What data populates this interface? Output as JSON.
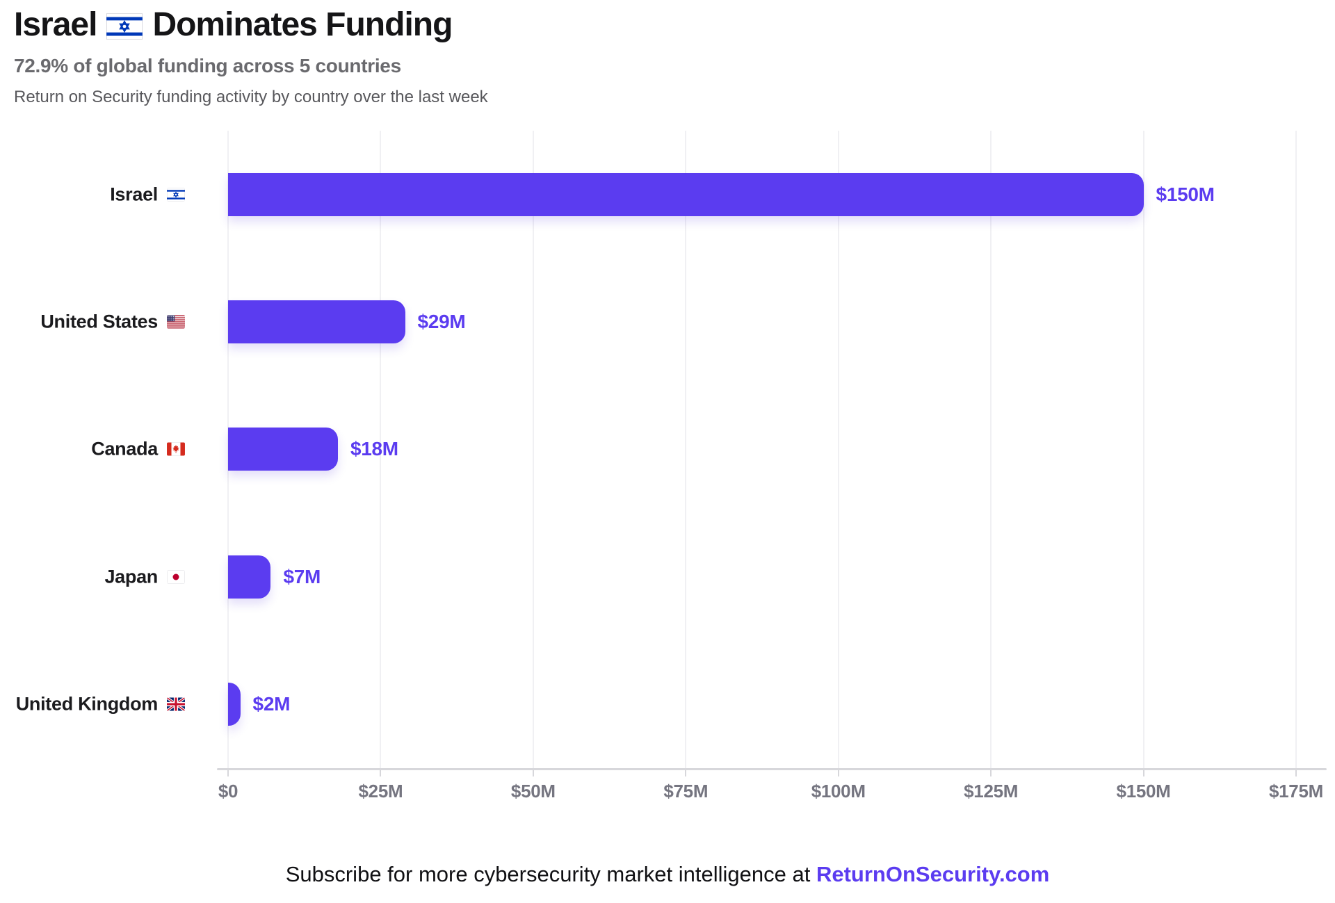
{
  "header": {
    "title_pre": "Israel",
    "title_flag": "israel-flag",
    "title_post": "Dominates Funding",
    "subtitle": "72.9% of global funding across 5 countries",
    "description": "Return on Security funding activity by country over the last week"
  },
  "chart_data": {
    "type": "bar",
    "orientation": "horizontal",
    "title": "Israel Dominates Funding",
    "subtitle": "72.9% of global funding across 5 countries",
    "categories": [
      "Israel",
      "United States",
      "Canada",
      "Japan",
      "United Kingdom"
    ],
    "country_slugs": [
      "israel",
      "united-states",
      "canada",
      "japan",
      "united-kingdom"
    ],
    "values": [
      150,
      29,
      18,
      7,
      2
    ],
    "value_labels": [
      "$150M",
      "$29M",
      "$18M",
      "$7M",
      "$2M"
    ],
    "value_unit": "USD millions",
    "xlim": [
      0,
      179
    ],
    "x_ticks": [
      {
        "value": 0,
        "label": "$0"
      },
      {
        "value": 25,
        "label": "$25M"
      },
      {
        "value": 50,
        "label": "$50M"
      },
      {
        "value": 75,
        "label": "$75M"
      },
      {
        "value": 100,
        "label": "$100M"
      },
      {
        "value": 125,
        "label": "$125M"
      },
      {
        "value": 150,
        "label": "$150M"
      },
      {
        "value": 175,
        "label": "$175M"
      }
    ],
    "grid": true,
    "legend": false,
    "bar_color": "#5b3cf0",
    "value_label_color": "#5b3cf0",
    "flag_colors": {
      "israel_blue": "#0038b8",
      "us_red": "#b22234",
      "us_blue": "#3c3b6e",
      "canada_red": "#d52b1e",
      "japan_red": "#bc002d",
      "uk_blue": "#012169",
      "uk_red": "#c8102e"
    }
  },
  "footer": {
    "text_prefix": "Subscribe for more cybersecurity market intelligence at ",
    "link_text": "ReturnOnSecurity.com",
    "link_color": "#5b3cf0"
  }
}
